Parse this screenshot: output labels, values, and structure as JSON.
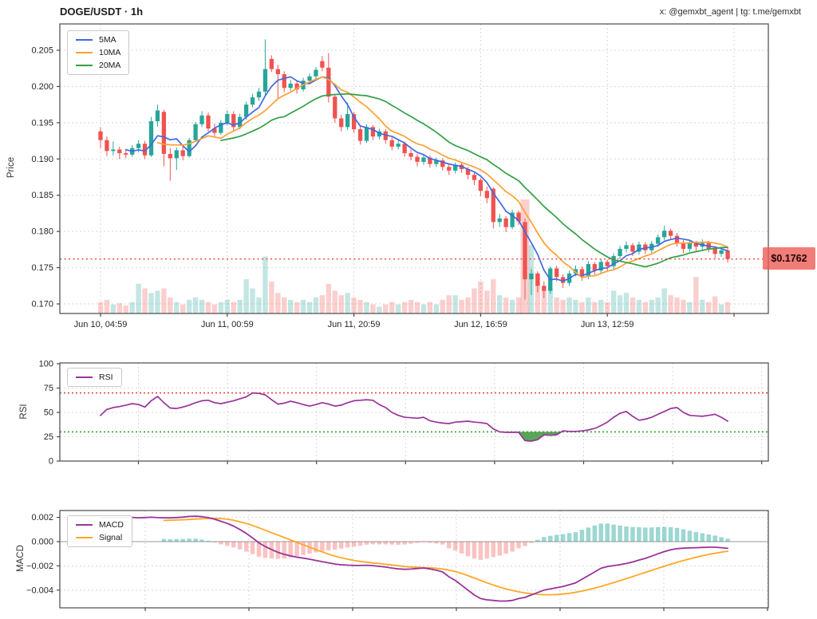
{
  "title": "DOGE/USDT · 1h",
  "watermark": "x: @gemxbt_agent | tg: t.me/gemxbt",
  "colors": {
    "up": "#26a69a",
    "down": "#ef5350",
    "vol_up": "rgba(38,166,154,0.28)",
    "vol_down": "rgba(239,83,80,0.28)",
    "ma5": "#4169e1",
    "ma10": "#ffa033",
    "ma20": "#33a047",
    "rsi": "#993399",
    "macd": "#993399",
    "signal": "#ffa726",
    "overbought": "#e8453c",
    "oversold": "#2ca02c",
    "price_line": "#e8453c",
    "price_tag_bg": "#ee5852",
    "hist_up": "rgba(38,166,154,0.45)",
    "hist_down": "rgba(239,83,80,0.35)",
    "grid": "#d8d8d8",
    "axis": "#4a4a4a",
    "zero_line": "#999999"
  },
  "chart_data": [
    {
      "type": "candlestick",
      "ylabel": "Price",
      "ylim": [
        0.1686,
        0.2086
      ],
      "yticks": [
        [
          0.205,
          "0.205"
        ],
        [
          0.2,
          "0.200"
        ],
        [
          0.195,
          "0.195"
        ],
        [
          0.19,
          "0.190"
        ],
        [
          0.185,
          "0.185"
        ],
        [
          0.18,
          "0.180"
        ],
        [
          0.175,
          "0.175"
        ],
        [
          0.17,
          "0.170"
        ]
      ],
      "xticks": [
        [
          0,
          "Jun 10, 04:59"
        ],
        [
          20,
          "Jun 11, 00:59"
        ],
        [
          40,
          "Jun 11, 20:59"
        ],
        [
          60,
          "Jun 12, 16:59"
        ],
        [
          80,
          "Jun 13, 12:59"
        ],
        [
          100,
          ""
        ]
      ],
      "ma_windows": [
        5,
        10,
        20
      ],
      "ma_labels": [
        "5MA",
        "10MA",
        "20MA"
      ],
      "price_line": {
        "value": 0.1762,
        "label": "$0.1762"
      },
      "candles": [
        [
          0.1938,
          0.1944,
          0.1915,
          0.1926
        ],
        [
          0.1926,
          0.1931,
          0.1904,
          0.1911
        ],
        [
          0.1911,
          0.1924,
          0.1905,
          0.1913
        ],
        [
          0.1913,
          0.1917,
          0.19,
          0.1908
        ],
        [
          0.1908,
          0.1914,
          0.1901,
          0.1906
        ],
        [
          0.1906,
          0.1919,
          0.1903,
          0.1915
        ],
        [
          0.1915,
          0.1926,
          0.1909,
          0.1921
        ],
        [
          0.1921,
          0.1925,
          0.19,
          0.1905
        ],
        [
          0.1905,
          0.1958,
          0.1903,
          0.1952
        ],
        [
          0.1952,
          0.1975,
          0.1945,
          0.1967
        ],
        [
          0.1965,
          0.1968,
          0.189,
          0.1907
        ],
        [
          0.1907,
          0.1915,
          0.187,
          0.1901
        ],
        [
          0.1901,
          0.1916,
          0.1885,
          0.1912
        ],
        [
          0.1912,
          0.1917,
          0.1898,
          0.1904
        ],
        [
          0.1904,
          0.1929,
          0.1902,
          0.1926
        ],
        [
          0.1926,
          0.1951,
          0.1924,
          0.1948
        ],
        [
          0.1948,
          0.1966,
          0.1944,
          0.196
        ],
        [
          0.196,
          0.1964,
          0.1938,
          0.1942
        ],
        [
          0.1942,
          0.1949,
          0.193,
          0.1936
        ],
        [
          0.1936,
          0.1954,
          0.1933,
          0.195
        ],
        [
          0.195,
          0.1967,
          0.1946,
          0.1962
        ],
        [
          0.1962,
          0.1966,
          0.1939,
          0.1944
        ],
        [
          0.1944,
          0.1962,
          0.1941,
          0.1958
        ],
        [
          0.1958,
          0.1979,
          0.1954,
          0.1975
        ],
        [
          0.1975,
          0.199,
          0.1971,
          0.1985
        ],
        [
          0.1985,
          0.1998,
          0.198,
          0.1993
        ],
        [
          0.1993,
          0.2065,
          0.1988,
          0.2024
        ],
        [
          0.2038,
          0.2043,
          0.202,
          0.2024
        ],
        [
          0.2024,
          0.203,
          0.1984,
          0.2017
        ],
        [
          0.2017,
          0.2021,
          0.1992,
          0.1998
        ],
        [
          0.1998,
          0.2009,
          0.1994,
          0.2004
        ],
        [
          0.2004,
          0.2008,
          0.199,
          0.1996
        ],
        [
          0.1996,
          0.2012,
          0.1993,
          0.2008
        ],
        [
          0.2008,
          0.2018,
          0.2003,
          0.2014
        ],
        [
          0.2014,
          0.2027,
          0.201,
          0.2023
        ],
        [
          0.2035,
          0.2042,
          0.2021,
          0.2026
        ],
        [
          0.2026,
          0.2046,
          0.1978,
          0.1986
        ],
        [
          0.1986,
          0.199,
          0.195,
          0.1956
        ],
        [
          0.1956,
          0.1961,
          0.1938,
          0.1944
        ],
        [
          0.1944,
          0.1978,
          0.194,
          0.1962
        ],
        [
          0.1962,
          0.1965,
          0.1936,
          0.1941
        ],
        [
          0.1941,
          0.1945,
          0.192,
          0.1925
        ],
        [
          0.1925,
          0.1948,
          0.1922,
          0.1944
        ],
        [
          0.1944,
          0.1947,
          0.1926,
          0.1931
        ],
        [
          0.1931,
          0.1942,
          0.1927,
          0.1938
        ],
        [
          0.1938,
          0.1941,
          0.1921,
          0.1926
        ],
        [
          0.1926,
          0.193,
          0.1912,
          0.1917
        ],
        [
          0.1917,
          0.1927,
          0.1913,
          0.1921
        ],
        [
          0.1921,
          0.1924,
          0.1903,
          0.1908
        ],
        [
          0.1908,
          0.1913,
          0.1898,
          0.1903
        ],
        [
          0.1903,
          0.1907,
          0.189,
          0.1896
        ],
        [
          0.1896,
          0.1906,
          0.1892,
          0.1902
        ],
        [
          0.1902,
          0.1905,
          0.1888,
          0.1893
        ],
        [
          0.1893,
          0.1902,
          0.1889,
          0.1898
        ],
        [
          0.1898,
          0.1901,
          0.1884,
          0.1889
        ],
        [
          0.1889,
          0.1893,
          0.1878,
          0.1884
        ],
        [
          0.1884,
          0.1895,
          0.188,
          0.1892
        ],
        [
          0.1892,
          0.1896,
          0.1881,
          0.1886
        ],
        [
          0.1886,
          0.1889,
          0.1872,
          0.1878
        ],
        [
          0.1878,
          0.1882,
          0.1864,
          0.1871
        ],
        [
          0.1871,
          0.1874,
          0.1849,
          0.1856
        ],
        [
          0.1856,
          0.1862,
          0.1839,
          0.1846
        ],
        [
          0.1859,
          0.1861,
          0.1804,
          0.1813
        ],
        [
          0.1813,
          0.1824,
          0.1806,
          0.1818
        ],
        [
          0.1818,
          0.1821,
          0.1799,
          0.1806
        ],
        [
          0.1806,
          0.183,
          0.1803,
          0.1826
        ],
        [
          0.1826,
          0.1829,
          0.1809,
          0.1814
        ],
        [
          0.1813,
          0.1818,
          0.1706,
          0.1734
        ],
        [
          0.1734,
          0.1748,
          0.1712,
          0.1742
        ],
        [
          0.1742,
          0.1745,
          0.1716,
          0.1725
        ],
        [
          0.1725,
          0.1731,
          0.1708,
          0.1718
        ],
        [
          0.1718,
          0.1752,
          0.1714,
          0.1749
        ],
        [
          0.1749,
          0.1753,
          0.1731,
          0.1737
        ],
        [
          0.1737,
          0.1741,
          0.1722,
          0.1729
        ],
        [
          0.1729,
          0.1746,
          0.1725,
          0.1742
        ],
        [
          0.1742,
          0.1753,
          0.1738,
          0.1748
        ],
        [
          0.1748,
          0.1752,
          0.1732,
          0.1738
        ],
        [
          0.1738,
          0.1759,
          0.1734,
          0.1755
        ],
        [
          0.1755,
          0.1758,
          0.174,
          0.1746
        ],
        [
          0.1746,
          0.1762,
          0.1742,
          0.1758
        ],
        [
          0.1758,
          0.1761,
          0.1746,
          0.1752
        ],
        [
          0.1752,
          0.177,
          0.1748,
          0.1766
        ],
        [
          0.1766,
          0.178,
          0.1762,
          0.1776
        ],
        [
          0.1776,
          0.1786,
          0.1771,
          0.1781
        ],
        [
          0.1781,
          0.1784,
          0.1766,
          0.1772
        ],
        [
          0.1772,
          0.1786,
          0.1768,
          0.1782
        ],
        [
          0.1782,
          0.1785,
          0.1769,
          0.1774
        ],
        [
          0.1774,
          0.1787,
          0.177,
          0.1783
        ],
        [
          0.1783,
          0.1796,
          0.1779,
          0.1792
        ],
        [
          0.1792,
          0.1808,
          0.1788,
          0.1801
        ],
        [
          0.1801,
          0.1804,
          0.1789,
          0.1794
        ],
        [
          0.1794,
          0.1798,
          0.1779,
          0.1784
        ],
        [
          0.1784,
          0.1788,
          0.177,
          0.1776
        ],
        [
          0.1776,
          0.1788,
          0.1772,
          0.1784
        ],
        [
          0.1784,
          0.1787,
          0.1773,
          0.1779
        ],
        [
          0.1779,
          0.1789,
          0.1775,
          0.1784
        ],
        [
          0.1784,
          0.1787,
          0.1771,
          0.1776
        ],
        [
          0.1776,
          0.178,
          0.1763,
          0.1769
        ],
        [
          0.1769,
          0.1778,
          0.1765,
          0.1774
        ],
        [
          0.1774,
          0.1777,
          0.1757,
          0.1762
        ]
      ],
      "volumes": [
        0.1,
        0.12,
        0.08,
        0.09,
        0.07,
        0.1,
        0.26,
        0.22,
        0.18,
        0.2,
        0.22,
        0.14,
        0.1,
        0.08,
        0.12,
        0.14,
        0.12,
        0.1,
        0.08,
        0.1,
        0.12,
        0.1,
        0.12,
        0.3,
        0.22,
        0.14,
        0.5,
        0.28,
        0.18,
        0.14,
        0.12,
        0.1,
        0.12,
        0.1,
        0.14,
        0.16,
        0.26,
        0.2,
        0.16,
        0.18,
        0.14,
        0.12,
        0.1,
        0.08,
        0.06,
        0.08,
        0.1,
        0.08,
        0.1,
        0.12,
        0.1,
        0.08,
        0.1,
        0.08,
        0.12,
        0.16,
        0.16,
        0.12,
        0.14,
        0.22,
        0.28,
        0.2,
        0.3,
        0.16,
        0.14,
        0.12,
        0.14,
        1.0,
        0.6,
        0.35,
        0.2,
        0.22,
        0.14,
        0.12,
        0.14,
        0.12,
        0.1,
        0.14,
        0.1,
        0.12,
        0.1,
        0.2,
        0.16,
        0.18,
        0.14,
        0.12,
        0.1,
        0.12,
        0.14,
        0.22,
        0.16,
        0.14,
        0.12,
        0.1,
        0.32,
        0.12,
        0.1,
        0.15,
        0.08,
        0.1
      ]
    },
    {
      "type": "line",
      "ylabel": "RSI",
      "ylim": [
        0,
        100
      ],
      "yticks": [
        [
          100,
          "100"
        ],
        [
          75,
          "75"
        ],
        [
          50,
          "50"
        ],
        [
          25,
          "25"
        ],
        [
          0,
          "0"
        ]
      ],
      "overbought": 70,
      "oversold": 30,
      "series": [
        {
          "name": "RSI",
          "values": [
            47,
            53,
            55,
            56,
            57.5,
            59,
            58,
            55.5,
            62,
            66.5,
            60,
            54.5,
            54,
            55.5,
            57.5,
            60,
            62,
            62.5,
            60,
            59,
            60.5,
            62,
            64,
            66,
            70,
            69.5,
            68,
            63,
            58.5,
            59.5,
            61.5,
            60,
            58,
            56.5,
            58,
            60,
            58.5,
            56.5,
            57.5,
            60,
            62,
            62.5,
            63,
            62.5,
            58,
            55,
            50,
            47,
            45,
            44.5,
            44,
            45,
            41.5,
            40,
            39,
            38.5,
            40,
            40.5,
            41,
            40,
            39.5,
            38.5,
            33,
            30,
            29.5,
            29.5,
            29.5,
            21,
            20.5,
            22,
            27,
            26.5,
            27,
            31,
            30.5,
            30.5,
            31,
            32,
            33.5,
            36.5,
            40,
            45,
            49,
            51,
            46,
            42,
            43,
            45,
            48,
            51,
            54,
            55,
            50,
            47,
            46.5,
            46,
            47,
            48,
            45,
            41
          ]
        }
      ]
    },
    {
      "type": "line+histogram",
      "ylabel": "MACD",
      "yticks": [
        [
          0.002,
          "0.002"
        ],
        [
          0,
          "0.000"
        ],
        [
          -0.002,
          "−0.002"
        ],
        [
          -0.004,
          "−0.004"
        ]
      ],
      "series": [
        {
          "name": "MACD",
          "values": [
            0.00195,
            0.00197,
            0.00199,
            0.00196,
            0.00198,
            0.002,
            0.00197,
            0.00199,
            0.00201,
            0.00198,
            0.00197,
            0.00196,
            0.00199,
            0.00202,
            0.00208,
            0.0021,
            0.00206,
            0.00198,
            0.00185,
            0.00168,
            0.0015,
            0.00128,
            0.001,
            0.00068,
            0.0003,
            -0.0001,
            -0.0004,
            -0.00065,
            -0.00088,
            -0.00105,
            -0.00118,
            -0.00128,
            -0.00136,
            -0.00145,
            -0.00155,
            -0.00165,
            -0.00175,
            -0.00185,
            -0.00191,
            -0.00194,
            -0.00196,
            -0.00197,
            -0.00195,
            -0.00198,
            -0.00204,
            -0.0021,
            -0.00218,
            -0.00225,
            -0.00228,
            -0.00226,
            -0.00222,
            -0.00218,
            -0.00225,
            -0.00235,
            -0.0025,
            -0.0029,
            -0.0032,
            -0.0036,
            -0.004,
            -0.0044,
            -0.0047,
            -0.0048,
            -0.00485,
            -0.0049,
            -0.0049,
            -0.00485,
            -0.0047,
            -0.0046,
            -0.0044,
            -0.0042,
            -0.004,
            -0.0039,
            -0.0038,
            -0.0037,
            -0.00355,
            -0.0034,
            -0.0031,
            -0.0028,
            -0.0025,
            -0.0022,
            -0.00205,
            -0.00198,
            -0.0019,
            -0.0018,
            -0.00168,
            -0.00152,
            -0.00138,
            -0.0012,
            -0.001,
            -0.00082,
            -0.00068,
            -0.00058,
            -0.00054,
            -0.00052,
            -0.0005,
            -0.00048,
            -0.00046,
            -0.00046,
            -0.0005,
            -0.00055
          ]
        },
        {
          "name": "Signal",
          "values": [
            null,
            null,
            null,
            null,
            null,
            null,
            null,
            null,
            null,
            null,
            0.00175,
            0.00176,
            0.00178,
            0.0018,
            0.00183,
            0.00186,
            0.00189,
            0.00191,
            0.00192,
            0.0019,
            0.00185,
            0.00176,
            0.00164,
            0.0015,
            0.00133,
            0.00114,
            0.00094,
            0.00074,
            0.00054,
            0.00034,
            0.00014,
            -6e-05,
            -0.00026,
            -0.00046,
            -0.00066,
            -0.00085,
            -0.00103,
            -0.00119,
            -0.00133,
            -0.00145,
            -0.00155,
            -0.00163,
            -0.0017,
            -0.00176,
            -0.00181,
            -0.00187,
            -0.00193,
            -0.00199,
            -0.00205,
            -0.00209,
            -0.00212,
            -0.00214,
            -0.00216,
            -0.0022,
            -0.00226,
            -0.00235,
            -0.00247,
            -0.00262,
            -0.0028,
            -0.003,
            -0.0032,
            -0.0034,
            -0.00358,
            -0.00375,
            -0.0039,
            -0.00403,
            -0.00414,
            -0.00423,
            -0.0043,
            -0.00435,
            -0.00438,
            -0.00438,
            -0.00436,
            -0.00432,
            -0.00426,
            -0.00418,
            -0.00408,
            -0.00396,
            -0.00383,
            -0.00369,
            -0.00354,
            -0.00338,
            -0.00322,
            -0.00305,
            -0.00288,
            -0.00271,
            -0.00254,
            -0.00237,
            -0.0022,
            -0.00203,
            -0.00187,
            -0.00171,
            -0.00156,
            -0.00142,
            -0.00129,
            -0.00117,
            -0.00106,
            -0.00096,
            -0.00087,
            -0.00079
          ]
        }
      ]
    }
  ]
}
